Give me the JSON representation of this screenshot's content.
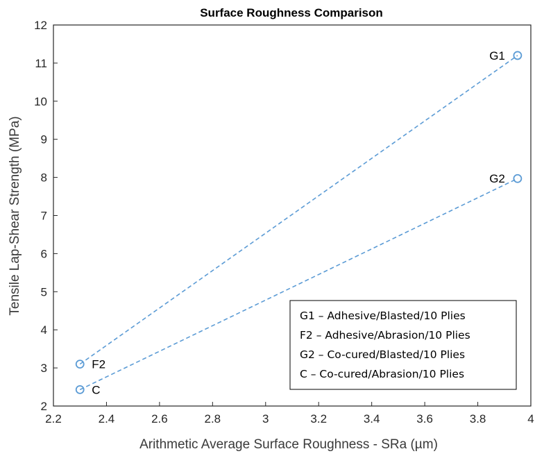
{
  "chart_data": {
    "type": "line",
    "title": "Surface Roughness Comparison",
    "xlabel": "Arithmetic Average Surface Roughness - SRa (µm)",
    "ylabel": "Tensile Lap-Shear Strength (MPa)",
    "xlim": [
      2.2,
      4
    ],
    "ylim": [
      2,
      12
    ],
    "xticks": [
      2.2,
      2.4,
      2.6,
      2.8,
      3,
      3.2,
      3.4,
      3.6,
      3.8,
      4
    ],
    "xtick_labels": [
      "2.2",
      "2.4",
      "2.6",
      "2.8",
      "3",
      "3.2",
      "3.4",
      "3.6",
      "3.8",
      "4"
    ],
    "yticks": [
      2,
      3,
      4,
      5,
      6,
      7,
      8,
      9,
      10,
      11,
      12
    ],
    "ytick_labels": [
      "2",
      "3",
      "4",
      "5",
      "6",
      "7",
      "8",
      "9",
      "10",
      "11",
      "12"
    ],
    "grid": false,
    "legend_position": "bottom-right",
    "line_style": "dashed",
    "marker": "circle",
    "color": "#5b9bd5",
    "series": [
      {
        "points": [
          {
            "label": "F2",
            "x": 2.3,
            "y": 3.1,
            "label_side": "right"
          },
          {
            "label": "G1",
            "x": 3.95,
            "y": 11.2,
            "label_side": "left"
          }
        ]
      },
      {
        "points": [
          {
            "label": "C",
            "x": 2.3,
            "y": 2.43,
            "label_side": "right"
          },
          {
            "label": "G2",
            "x": 3.95,
            "y": 7.97,
            "label_side": "left"
          }
        ]
      }
    ],
    "legend": [
      "G1 – Adhesive/Blasted/10 Plies",
      "F2 – Adhesive/Abrasion/10 Plies",
      "G2 – Co-cured/Blasted/10 Plies",
      "C – Co-cured/Abrasion/10 Plies"
    ]
  }
}
